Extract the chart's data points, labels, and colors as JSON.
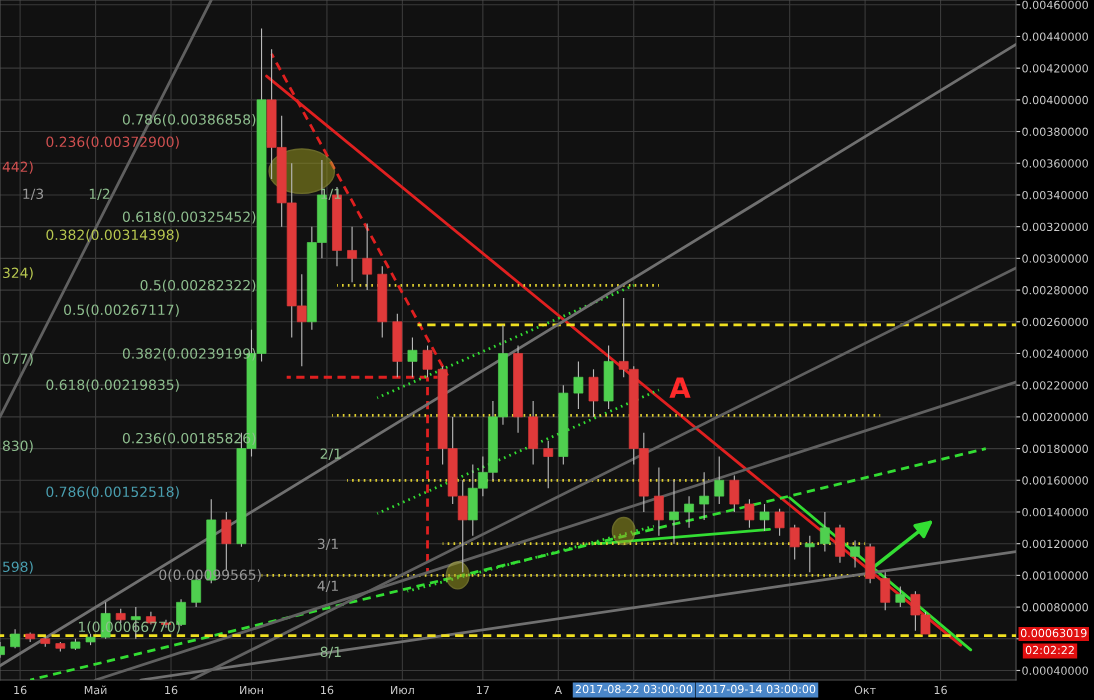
{
  "chart_data": {
    "type": "candlestick",
    "x": [
      "2017-04-12",
      "2017-04-15",
      "2017-04-18",
      "2017-04-21",
      "2017-04-24",
      "2017-04-27",
      "2017-04-30",
      "2017-05-03",
      "2017-05-06",
      "2017-05-09",
      "2017-05-12",
      "2017-05-15",
      "2017-05-18",
      "2017-05-21",
      "2017-05-24",
      "2017-05-27",
      "2017-05-30",
      "2017-06-01",
      "2017-06-03",
      "2017-06-05",
      "2017-06-07",
      "2017-06-09",
      "2017-06-11",
      "2017-06-13",
      "2017-06-15",
      "2017-06-18",
      "2017-06-21",
      "2017-06-24",
      "2017-06-27",
      "2017-06-30",
      "2017-07-03",
      "2017-07-06",
      "2017-07-09",
      "2017-07-11",
      "2017-07-13",
      "2017-07-15",
      "2017-07-17",
      "2017-07-19",
      "2017-07-21",
      "2017-07-24",
      "2017-07-27",
      "2017-07-30",
      "2017-08-02",
      "2017-08-05",
      "2017-08-08",
      "2017-08-11",
      "2017-08-14",
      "2017-08-16",
      "2017-08-18",
      "2017-08-21",
      "2017-08-24",
      "2017-08-27",
      "2017-08-30",
      "2017-09-02",
      "2017-09-05",
      "2017-09-08",
      "2017-09-11",
      "2017-09-14",
      "2017-09-17",
      "2017-09-20",
      "2017-09-23",
      "2017-09-26",
      "2017-09-29",
      "2017-10-02",
      "2017-10-05",
      "2017-10-08",
      "2017-10-11",
      "2017-10-13"
    ],
    "ohlc": [
      [
        0.0005,
        0.00058,
        0.00048,
        0.00055
      ],
      [
        0.00055,
        0.00066,
        0.00054,
        0.00063
      ],
      [
        0.00063,
        0.00064,
        0.00058,
        0.0006
      ],
      [
        0.0006,
        0.00061,
        0.00055,
        0.00057
      ],
      [
        0.00057,
        0.00058,
        0.00052,
        0.00054
      ],
      [
        0.00054,
        0.0006,
        0.00053,
        0.00058
      ],
      [
        0.00058,
        0.00063,
        0.00056,
        0.00061
      ],
      [
        0.00061,
        0.00083,
        0.0006,
        0.00076
      ],
      [
        0.00076,
        0.00079,
        0.0007,
        0.00072
      ],
      [
        0.00072,
        0.0008,
        0.0006,
        0.00074
      ],
      [
        0.00074,
        0.00077,
        0.00069,
        0.0007
      ],
      [
        0.0007,
        0.00072,
        0.00067,
        0.00069
      ],
      [
        0.00069,
        0.00085,
        0.00068,
        0.00083
      ],
      [
        0.00083,
        0.001,
        0.0008,
        0.00097
      ],
      [
        0.00097,
        0.00148,
        0.00095,
        0.00135
      ],
      [
        0.00135,
        0.0014,
        0.00103,
        0.0012
      ],
      [
        0.0012,
        0.0019,
        0.00118,
        0.0018
      ],
      [
        0.0018,
        0.00255,
        0.00175,
        0.0024
      ],
      [
        0.0024,
        0.00445,
        0.00235,
        0.004
      ],
      [
        0.004,
        0.00432,
        0.0035,
        0.0037
      ],
      [
        0.0037,
        0.0039,
        0.0032,
        0.00335
      ],
      [
        0.00335,
        0.0036,
        0.0025,
        0.0027
      ],
      [
        0.0027,
        0.0029,
        0.00232,
        0.0026
      ],
      [
        0.0026,
        0.0032,
        0.00255,
        0.0031
      ],
      [
        0.0031,
        0.00362,
        0.003,
        0.0034
      ],
      [
        0.0034,
        0.00345,
        0.00295,
        0.00305
      ],
      [
        0.00305,
        0.0032,
        0.00285,
        0.003
      ],
      [
        0.003,
        0.00322,
        0.0028,
        0.0029
      ],
      [
        0.0029,
        0.00295,
        0.0025,
        0.0026
      ],
      [
        0.0026,
        0.00265,
        0.00225,
        0.00235
      ],
      [
        0.00235,
        0.0025,
        0.00225,
        0.00242
      ],
      [
        0.00242,
        0.00245,
        0.00225,
        0.0023
      ],
      [
        0.0023,
        0.00232,
        0.0017,
        0.0018
      ],
      [
        0.0018,
        0.002,
        0.00145,
        0.0015
      ],
      [
        0.0015,
        0.0016,
        0.00102,
        0.00135
      ],
      [
        0.00135,
        0.0017,
        0.00125,
        0.00155
      ],
      [
        0.00155,
        0.00175,
        0.0015,
        0.00165
      ],
      [
        0.00165,
        0.0021,
        0.0016,
        0.002
      ],
      [
        0.002,
        0.00258,
        0.00195,
        0.0024
      ],
      [
        0.0024,
        0.00245,
        0.0019,
        0.002
      ],
      [
        0.002,
        0.0021,
        0.0017,
        0.0018
      ],
      [
        0.0018,
        0.00185,
        0.00155,
        0.00175
      ],
      [
        0.00175,
        0.0022,
        0.0017,
        0.00215
      ],
      [
        0.00215,
        0.00235,
        0.00205,
        0.00225
      ],
      [
        0.00225,
        0.0023,
        0.002,
        0.0021
      ],
      [
        0.0021,
        0.00245,
        0.00205,
        0.00235
      ],
      [
        0.00235,
        0.00275,
        0.00225,
        0.0023
      ],
      [
        0.0023,
        0.00232,
        0.0017,
        0.0018
      ],
      [
        0.0018,
        0.0019,
        0.0014,
        0.0015
      ],
      [
        0.0015,
        0.00168,
        0.00125,
        0.00135
      ],
      [
        0.00135,
        0.0016,
        0.0012,
        0.0014
      ],
      [
        0.0014,
        0.0015,
        0.0013,
        0.00145
      ],
      [
        0.00145,
        0.00165,
        0.00135,
        0.0015
      ],
      [
        0.0015,
        0.00175,
        0.00145,
        0.0016
      ],
      [
        0.0016,
        0.00163,
        0.0014,
        0.00145
      ],
      [
        0.00145,
        0.00148,
        0.0013,
        0.00135
      ],
      [
        0.00135,
        0.00145,
        0.00128,
        0.0014
      ],
      [
        0.0014,
        0.00142,
        0.00125,
        0.0013
      ],
      [
        0.0013,
        0.00132,
        0.0011,
        0.00118
      ],
      [
        0.00118,
        0.00125,
        0.00102,
        0.0012
      ],
      [
        0.0012,
        0.0014,
        0.00115,
        0.0013
      ],
      [
        0.0013,
        0.00132,
        0.00108,
        0.00112
      ],
      [
        0.00112,
        0.00122,
        0.00105,
        0.00118
      ],
      [
        0.00118,
        0.0012,
        0.00095,
        0.00098
      ],
      [
        0.00098,
        0.00102,
        0.00078,
        0.00083
      ],
      [
        0.00083,
        0.00093,
        0.0008,
        0.00088
      ],
      [
        0.00088,
        0.0009,
        0.00065,
        0.00075
      ],
      [
        0.00075,
        0.00077,
        0.00063,
        0.00063
      ]
    ],
    "series": [
      {
        "type": "line",
        "x": [
          "2017-06-04",
          "2017-10-20"
        ],
        "values": [
          0.00415,
          0.00056
        ],
        "color": "#e02020",
        "line_style": "solid"
      },
      {
        "type": "line",
        "x": [
          "2017-06-05",
          "2017-07-10"
        ],
        "values": [
          0.00429,
          0.00226
        ],
        "color": "#e02020",
        "line_style": "dashed"
      },
      {
        "type": "line",
        "x": [
          "2017-06-08",
          "2017-07-08"
        ],
        "values": [
          0.00225,
          0.00225
        ],
        "color": "#e02020",
        "line_style": "dashed"
      },
      {
        "type": "line",
        "x": [
          "2017-07-06",
          "2017-07-06"
        ],
        "values": [
          0.00225,
          0.00102
        ],
        "color": "#e02020",
        "line_style": "dashed"
      },
      {
        "type": "line",
        "x": [
          "2017-09-16",
          "2017-10-22"
        ],
        "values": [
          0.00149,
          0.00053
        ],
        "color": "#33dd33",
        "line_style": "solid"
      },
      {
        "type": "line",
        "x": [
          "2017-04-18",
          "2017-10-25"
        ],
        "values": [
          0.00034,
          0.0018
        ],
        "color": "#33dd33",
        "line_style": "dashed"
      },
      {
        "type": "line",
        "x": [
          "2017-08-09",
          "2017-09-12"
        ],
        "values": [
          0.0012,
          0.00129
        ],
        "color": "#33dd33",
        "line_style": "solid"
      },
      {
        "type": "line",
        "x": [
          "2017-06-26",
          "2017-08-16"
        ],
        "values": [
          0.00212,
          0.00283
        ],
        "color": "#33dd33",
        "line_style": "dotted"
      },
      {
        "type": "line",
        "x": [
          "2017-06-26",
          "2017-08-21"
        ],
        "values": [
          0.00139,
          0.00217
        ],
        "color": "#33dd33",
        "line_style": "dotted"
      },
      {
        "type": "line",
        "x": [
          "2017-07-02",
          "2017-08-20"
        ],
        "values": [
          0.0009,
          0.00131
        ],
        "color": "#33dd33",
        "line_style": "dotted"
      },
      {
        "type": "line",
        "x": [
          "2017-07-04",
          "2017-10-31"
        ],
        "values": [
          0.00258,
          0.00258
        ],
        "color": "#f0e020",
        "line_style": "dashed"
      },
      {
        "type": "line",
        "x": [
          "2017-06-18",
          "2017-08-21"
        ],
        "values": [
          0.00283,
          0.00283
        ],
        "color": "#e0d030",
        "line_style": "dotted"
      },
      {
        "type": "line",
        "x": [
          "2017-06-17",
          "2017-10-04"
        ],
        "values": [
          0.00201,
          0.00201
        ],
        "color": "#e0d030",
        "line_style": "dotted"
      },
      {
        "type": "line",
        "x": [
          "2017-06-20",
          "2017-08-31"
        ],
        "values": [
          0.0016,
          0.0016
        ],
        "color": "#e0d030",
        "line_style": "dotted"
      },
      {
        "type": "line",
        "x": [
          "2017-07-09",
          "2017-10-01"
        ],
        "values": [
          0.0012,
          0.0012
        ],
        "color": "#e0d030",
        "line_style": "dotted"
      },
      {
        "type": "line",
        "x": [
          "2017-06-03",
          "2017-10-01"
        ],
        "values": [
          0.001,
          0.001
        ],
        "color": "#e0d030",
        "line_style": "dotted"
      },
      {
        "type": "line",
        "x": [
          "2017-04-12",
          "2017-10-31"
        ],
        "values": [
          0.00043,
          0.00435
        ],
        "color": "#707070",
        "line_style": "solid"
      },
      {
        "type": "line",
        "x": [
          "2017-05-10",
          "2017-10-31"
        ],
        "values": [
          0.00034,
          0.00115
        ],
        "color": "#707070",
        "line_style": "solid"
      },
      {
        "type": "line",
        "x": [
          "2017-05-20",
          "2017-10-31"
        ],
        "values": [
          0.00034,
          0.00294
        ],
        "color": "#606060",
        "line_style": "solid"
      },
      {
        "type": "line",
        "x": [
          "2017-05-01",
          "2017-10-31"
        ],
        "values": [
          0.00034,
          0.00222
        ],
        "color": "#606060",
        "line_style": "solid"
      },
      {
        "type": "line",
        "x": [
          "2017-04-12",
          "2017-05-24"
        ],
        "values": [
          0.002,
          0.00463
        ],
        "color": "#606060",
        "line_style": "solid"
      }
    ],
    "ref_lines": [
      {
        "axis": "y",
        "value": 0.00062,
        "color": "#f0e020",
        "line_style": "dashed"
      }
    ],
    "annotations": [
      {
        "text": "0.786(0.00386858)",
        "x": "2017-06-02",
        "y": 0.003869
      },
      {
        "text": "0.618(0.00325452)",
        "x": "2017-06-02",
        "y": 0.003255
      },
      {
        "text": "0.5(0.00282322)",
        "x": "2017-06-02",
        "y": 0.002823
      },
      {
        "text": "0.382(0.00239199)",
        "x": "2017-06-02",
        "y": 0.002392
      },
      {
        "text": "0.236(0.00185826)",
        "x": "2017-06-02",
        "y": 0.001858
      },
      {
        "text": "1(0.00066770)",
        "x": "2017-05-18",
        "y": 0.000668
      },
      {
        "text": "1/2",
        "x": "2017-05-04",
        "y": 0.0034
      },
      {
        "text": "1/1",
        "x": "2017-06-19",
        "y": 0.0034
      },
      {
        "text": "2/1",
        "x": "2017-06-19",
        "y": 0.00176
      },
      {
        "text": "8/1",
        "x": "2017-06-19",
        "y": 0.00051
      },
      {
        "text": "0.00063019",
        "x": "2017-10-31",
        "y": 0.00063019
      },
      "A",
      "0(0.00099565)",
      "0.236(0.00372900)",
      "0.382(0.00314398)",
      "0.5(0.00267117)",
      "0.618(0.00219835)",
      "0.786(0.00152518)",
      "442)",
      "324)",
      "077)",
      "830)",
      "598)",
      "1/3",
      "3/1",
      "4/1",
      "2017-08-22 03:00:00",
      "2017-09-14 03:00:00",
      "02:02:22"
    ],
    "xlim": [
      "2017-04-12",
      "2017-10-31"
    ],
    "xticks": [
      {
        "value": "2017-04-16",
        "label": "16"
      },
      {
        "value": "2017-05-01",
        "label": "Май"
      },
      {
        "value": "2017-05-16",
        "label": "16"
      },
      {
        "value": "2017-06-01",
        "label": "Июн"
      },
      {
        "value": "2017-06-16",
        "label": "16"
      },
      {
        "value": "2017-07-01",
        "label": "Июл"
      },
      {
        "value": "2017-07-17",
        "label": "17"
      },
      {
        "value": "2017-08-01",
        "label": "А"
      },
      {
        "value": "2017-08-16",
        "label": null
      },
      {
        "value": "2017-09-01",
        "label": null
      },
      {
        "value": "2017-09-16",
        "label": null
      },
      {
        "value": "2017-10-01",
        "label": "Окт"
      },
      {
        "value": "2017-10-16",
        "label": "16"
      }
    ],
    "ylim": [
      0.00034,
      0.00463
    ],
    "yticks": [
      {
        "value": 0.0004,
        "label": "0.00040000"
      },
      {
        "value": 0.0006,
        "label": null
      },
      {
        "value": 0.0008,
        "label": "0.00080000"
      },
      {
        "value": 0.001,
        "label": "0.00100000"
      },
      {
        "value": 0.0012,
        "label": "0.00120000"
      },
      {
        "value": 0.0014,
        "label": "0.00140000"
      },
      {
        "value": 0.0016,
        "label": "0.00160000"
      },
      {
        "value": 0.0018,
        "label": "0.00180000"
      },
      {
        "value": 0.002,
        "label": "0.00200000"
      },
      {
        "value": 0.0022,
        "label": "0.00220000"
      },
      {
        "value": 0.0024,
        "label": "0.00240000"
      },
      {
        "value": 0.0026,
        "label": "0.00260000"
      },
      {
        "value": 0.0028,
        "label": "0.00280000"
      },
      {
        "value": 0.003,
        "label": "0.00300000"
      },
      {
        "value": 0.0032,
        "label": "0.00320000"
      },
      {
        "value": 0.0034,
        "label": "0.00340000"
      },
      {
        "value": 0.0036,
        "label": "0.00360000"
      },
      {
        "value": 0.0038,
        "label": "0.00380000"
      },
      {
        "value": 0.004,
        "label": "0.00400000"
      },
      {
        "value": 0.0042,
        "label": "0.00420000"
      },
      {
        "value": 0.0044,
        "label": "0.00440000"
      },
      {
        "value": 0.0046,
        "label": "0.00460000"
      }
    ],
    "grid": true
  }
}
